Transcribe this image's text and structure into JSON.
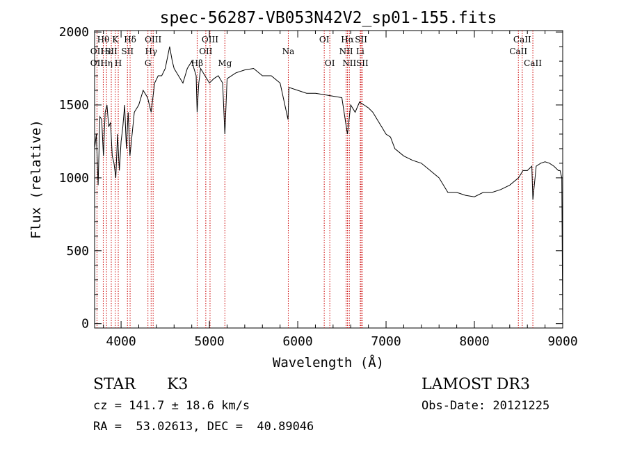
{
  "chart_data": {
    "type": "line",
    "title": "spec-56287-VB053N42V2_sp01-155.fits",
    "xlabel": "Wavelength (Å)",
    "ylabel": "Flux (relative)",
    "xlim": [
      3700,
      9000
    ],
    "ylim": [
      -30,
      2010
    ],
    "x_ticks": [
      4000,
      5000,
      6000,
      7000,
      8000,
      9000
    ],
    "y_ticks": [
      0,
      500,
      1000,
      1500,
      2000
    ],
    "x_tick_labels": [
      "4000",
      "5000",
      "6000",
      "7000",
      "8000",
      "9000"
    ],
    "y_tick_labels": [
      "0",
      "500",
      "1000",
      "1500",
      "2000"
    ],
    "grid": false,
    "line_color": "#000000",
    "marker_color": "#cc0000",
    "spectrum": {
      "x": [
        3700,
        3720,
        3740,
        3760,
        3780,
        3800,
        3820,
        3840,
        3860,
        3880,
        3900,
        3920,
        3940,
        3960,
        3980,
        4000,
        4020,
        4040,
        4060,
        4080,
        4100,
        4150,
        4200,
        4250,
        4300,
        4340,
        4380,
        4420,
        4460,
        4500,
        4550,
        4580,
        4600,
        4650,
        4700,
        4750,
        4800,
        4850,
        4861,
        4880,
        4900,
        4950,
        5000,
        5050,
        5100,
        5150,
        5175,
        5200,
        5300,
        5400,
        5500,
        5600,
        5700,
        5800,
        5890,
        5900,
        6000,
        6100,
        6200,
        6300,
        6400,
        6500,
        6563,
        6600,
        6650,
        6700,
        6750,
        6800,
        6850,
        6900,
        6950,
        7000,
        7050,
        7100,
        7200,
        7300,
        7400,
        7500,
        7600,
        7700,
        7800,
        7900,
        8000,
        8100,
        8200,
        8300,
        8400,
        8500,
        8550,
        8600,
        8650,
        8662,
        8700,
        8750,
        8800,
        8850,
        8900,
        8950,
        8970,
        8990,
        9000
      ],
      "y": [
        1200,
        1300,
        950,
        1420,
        1400,
        1150,
        1450,
        1500,
        1350,
        1380,
        1150,
        1100,
        1000,
        1300,
        1050,
        1250,
        1350,
        1500,
        1200,
        1450,
        1150,
        1450,
        1500,
        1600,
        1550,
        1450,
        1650,
        1700,
        1700,
        1750,
        1900,
        1800,
        1750,
        1700,
        1650,
        1750,
        1800,
        1700,
        1450,
        1650,
        1750,
        1700,
        1650,
        1680,
        1700,
        1650,
        1300,
        1680,
        1720,
        1740,
        1750,
        1700,
        1700,
        1650,
        1400,
        1620,
        1600,
        1580,
        1580,
        1570,
        1560,
        1550,
        1300,
        1500,
        1450,
        1520,
        1500,
        1480,
        1450,
        1400,
        1350,
        1300,
        1280,
        1200,
        1150,
        1120,
        1100,
        1050,
        1000,
        900,
        900,
        880,
        870,
        900,
        900,
        920,
        950,
        1000,
        1050,
        1050,
        1080,
        850,
        1080,
        1100,
        1110,
        1100,
        1080,
        1050,
        1050,
        1000,
        0
      ]
    },
    "line_markers": [
      {
        "label": "Hθ",
        "x": 3798,
        "tier": 1
      },
      {
        "label": "OII",
        "x": 3727,
        "tier": 2
      },
      {
        "label": "OII",
        "x": 3727,
        "tier": 3
      },
      {
        "label": "Hε",
        "x": 3835,
        "tier": 2
      },
      {
        "label": "Hη",
        "x": 3835,
        "tier": 3
      },
      {
        "label": "K",
        "x": 3934,
        "tier": 1
      },
      {
        "label": "SII",
        "x": 3889,
        "tier": 2
      },
      {
        "label": "H",
        "x": 3968,
        "tier": 3
      },
      {
        "label": "Hδ",
        "x": 4102,
        "tier": 1
      },
      {
        "label": "SII",
        "x": 4072,
        "tier": 2
      },
      {
        "label": "OIII",
        "x": 4363,
        "tier": 1
      },
      {
        "label": "Hγ",
        "x": 4340,
        "tier": 2
      },
      {
        "label": "G",
        "x": 4304,
        "tier": 3
      },
      {
        "label": "OIII",
        "x": 5007,
        "tier": 1
      },
      {
        "label": "OII",
        "x": 4959,
        "tier": 2
      },
      {
        "label": "Hβ",
        "x": 4861,
        "tier": 3
      },
      {
        "label": "Mg",
        "x": 5175,
        "tier": 3
      },
      {
        "label": "Na",
        "x": 5893,
        "tier": 2
      },
      {
        "label": "OI",
        "x": 6300,
        "tier": 1
      },
      {
        "label": "OI",
        "x": 6363,
        "tier": 3
      },
      {
        "label": "Hα",
        "x": 6563,
        "tier": 1
      },
      {
        "label": "SII",
        "x": 6717,
        "tier": 1
      },
      {
        "label": "NII",
        "x": 6548,
        "tier": 2
      },
      {
        "label": "Li",
        "x": 6708,
        "tier": 2
      },
      {
        "label": "NII",
        "x": 6584,
        "tier": 3
      },
      {
        "label": "SII",
        "x": 6731,
        "tier": 3
      },
      {
        "label": "CaII",
        "x": 8542,
        "tier": 1
      },
      {
        "label": "CaII",
        "x": 8498,
        "tier": 2
      },
      {
        "label": "CaII",
        "x": 8662,
        "tier": 3
      }
    ]
  },
  "footer": {
    "object_class": "STAR",
    "subclass": "K3",
    "survey": "LAMOST DR3",
    "redshift": "cz = 141.7 ± 18.6 km/s",
    "obs_date": "Obs-Date: 20121225",
    "coords": "RA =  53.02613, DEC =  40.89046"
  }
}
